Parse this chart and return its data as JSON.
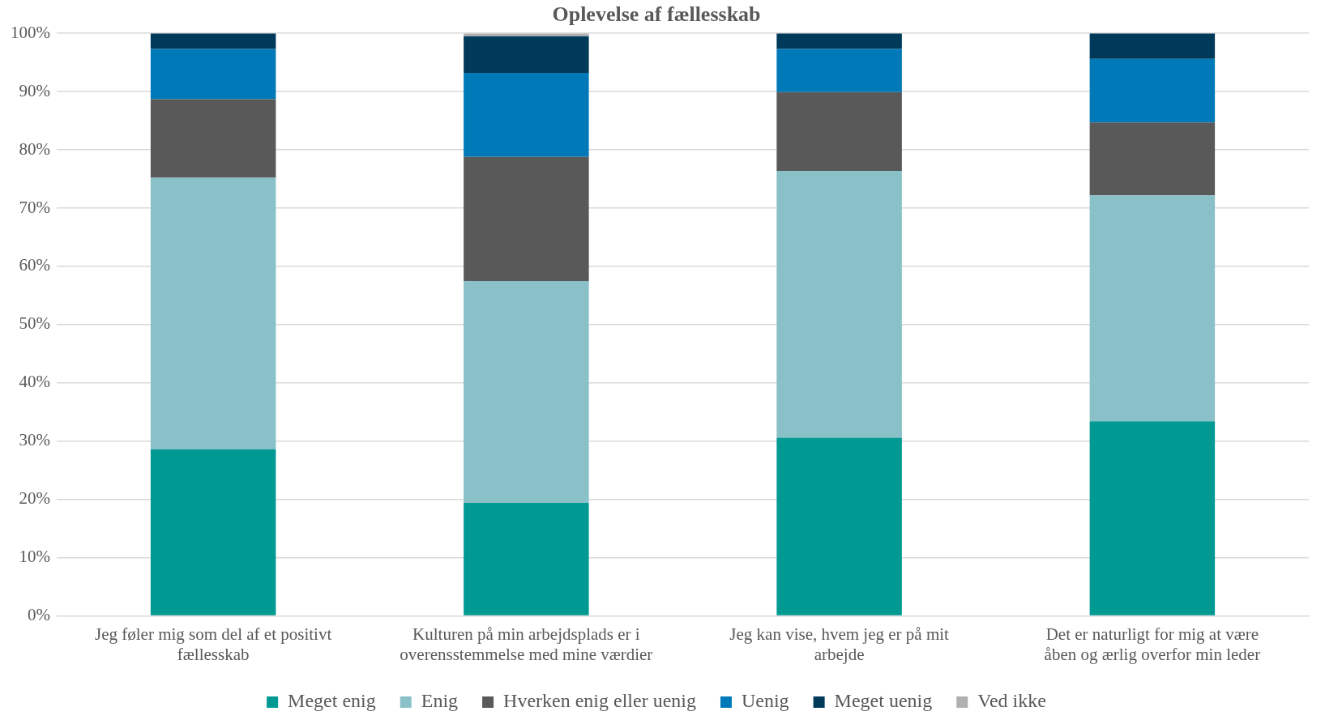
{
  "chart_data": {
    "type": "bar",
    "title": "Oplevelse af fællesskab",
    "stacked": true,
    "categories": [
      "Jeg føler mig som del af et positivt fællesskab",
      "Kulturen på min arbejdsplads er i overensstemmelse med mine værdier",
      "Jeg kan vise, hvem jeg er på mit arbejde",
      "Det er naturligt for mig at være åben og ærlig overfor min leder"
    ],
    "series": [
      {
        "name": "Meget enig",
        "color": "#009a93",
        "values": [
          28.6,
          19.4,
          30.6,
          33.4
        ]
      },
      {
        "name": "Enig",
        "color": "#8ac0c8",
        "values": [
          46.6,
          38.1,
          45.8,
          38.8
        ]
      },
      {
        "name": "Hverken enig eller uenig",
        "color": "#595959",
        "values": [
          13.5,
          21.3,
          13.5,
          12.5
        ]
      },
      {
        "name": "Uenig",
        "color": "#0079b8",
        "values": [
          8.6,
          14.4,
          7.4,
          10.9
        ]
      },
      {
        "name": "Meget uenig",
        "color": "#003a5a",
        "values": [
          2.7,
          6.3,
          2.7,
          4.4
        ]
      },
      {
        "name": "Ved ikke",
        "color": "#b0b0b0",
        "values": [
          0,
          0.5,
          0,
          0
        ]
      }
    ],
    "ylim": [
      0,
      100
    ],
    "yticks": [
      {
        "value": 0,
        "label": "0%"
      },
      {
        "value": 10,
        "label": "10%"
      },
      {
        "value": 20,
        "label": "20%"
      },
      {
        "value": 30,
        "label": "30%"
      },
      {
        "value": 40,
        "label": "40%"
      },
      {
        "value": 50,
        "label": "50%"
      },
      {
        "value": 60,
        "label": "60%"
      },
      {
        "value": 70,
        "label": "70%"
      },
      {
        "value": 80,
        "label": "80%"
      },
      {
        "value": 90,
        "label": "90%"
      },
      {
        "value": 100,
        "label": "100%"
      }
    ],
    "grid": "y",
    "legend": "bottom"
  }
}
